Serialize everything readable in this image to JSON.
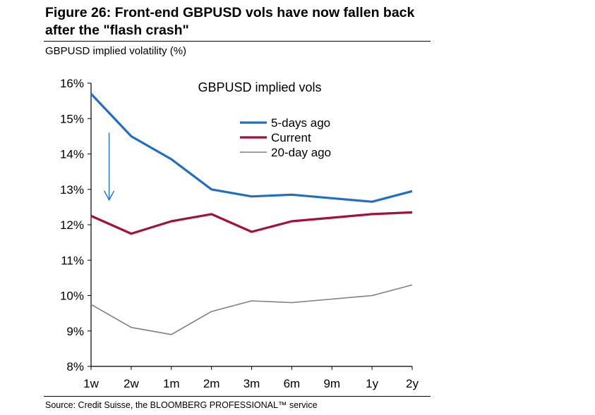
{
  "figure": {
    "title": "Figure 26: Front-end GBPUSD vols have now fallen back after the \"flash crash\"",
    "subtitle": "GBPUSD implied volatility (%)",
    "source": "Source: Credit Suisse, the BLOOMBERG PROFESSIONAL™ service"
  },
  "chart_data": {
    "type": "line",
    "title": "GBPUSD implied vols",
    "xlabel": "",
    "ylabel": "",
    "categories": [
      "1w",
      "2w",
      "1m",
      "2m",
      "3m",
      "6m",
      "9m",
      "1y",
      "2y"
    ],
    "ylim": [
      8,
      16
    ],
    "yticks": [
      8,
      9,
      10,
      11,
      12,
      13,
      14,
      15,
      16
    ],
    "ytick_labels": [
      "8%",
      "9%",
      "10%",
      "11%",
      "12%",
      "13%",
      "14%",
      "15%",
      "16%"
    ],
    "grid": false,
    "legend_position": "top-right",
    "series": [
      {
        "name": "5-days ago",
        "color": "#1f6fc5",
        "values": [
          15.7,
          14.5,
          13.85,
          13.0,
          12.8,
          12.85,
          12.75,
          12.65,
          12.95
        ]
      },
      {
        "name": "Current",
        "color": "#a50f38",
        "values": [
          12.25,
          11.75,
          12.1,
          12.3,
          11.8,
          12.1,
          12.2,
          12.3,
          12.35
        ]
      },
      {
        "name": "20-day ago",
        "color": "#7f7f7f",
        "values": [
          9.75,
          9.1,
          8.9,
          9.55,
          9.85,
          9.8,
          9.9,
          10.0,
          10.3
        ]
      }
    ],
    "annotations": [
      {
        "type": "arrow",
        "color": "#1f6fc5",
        "from": {
          "x": "1w-2w",
          "y": 14.6
        },
        "to": {
          "x": "1w-2w",
          "y": 12.7
        }
      }
    ]
  }
}
